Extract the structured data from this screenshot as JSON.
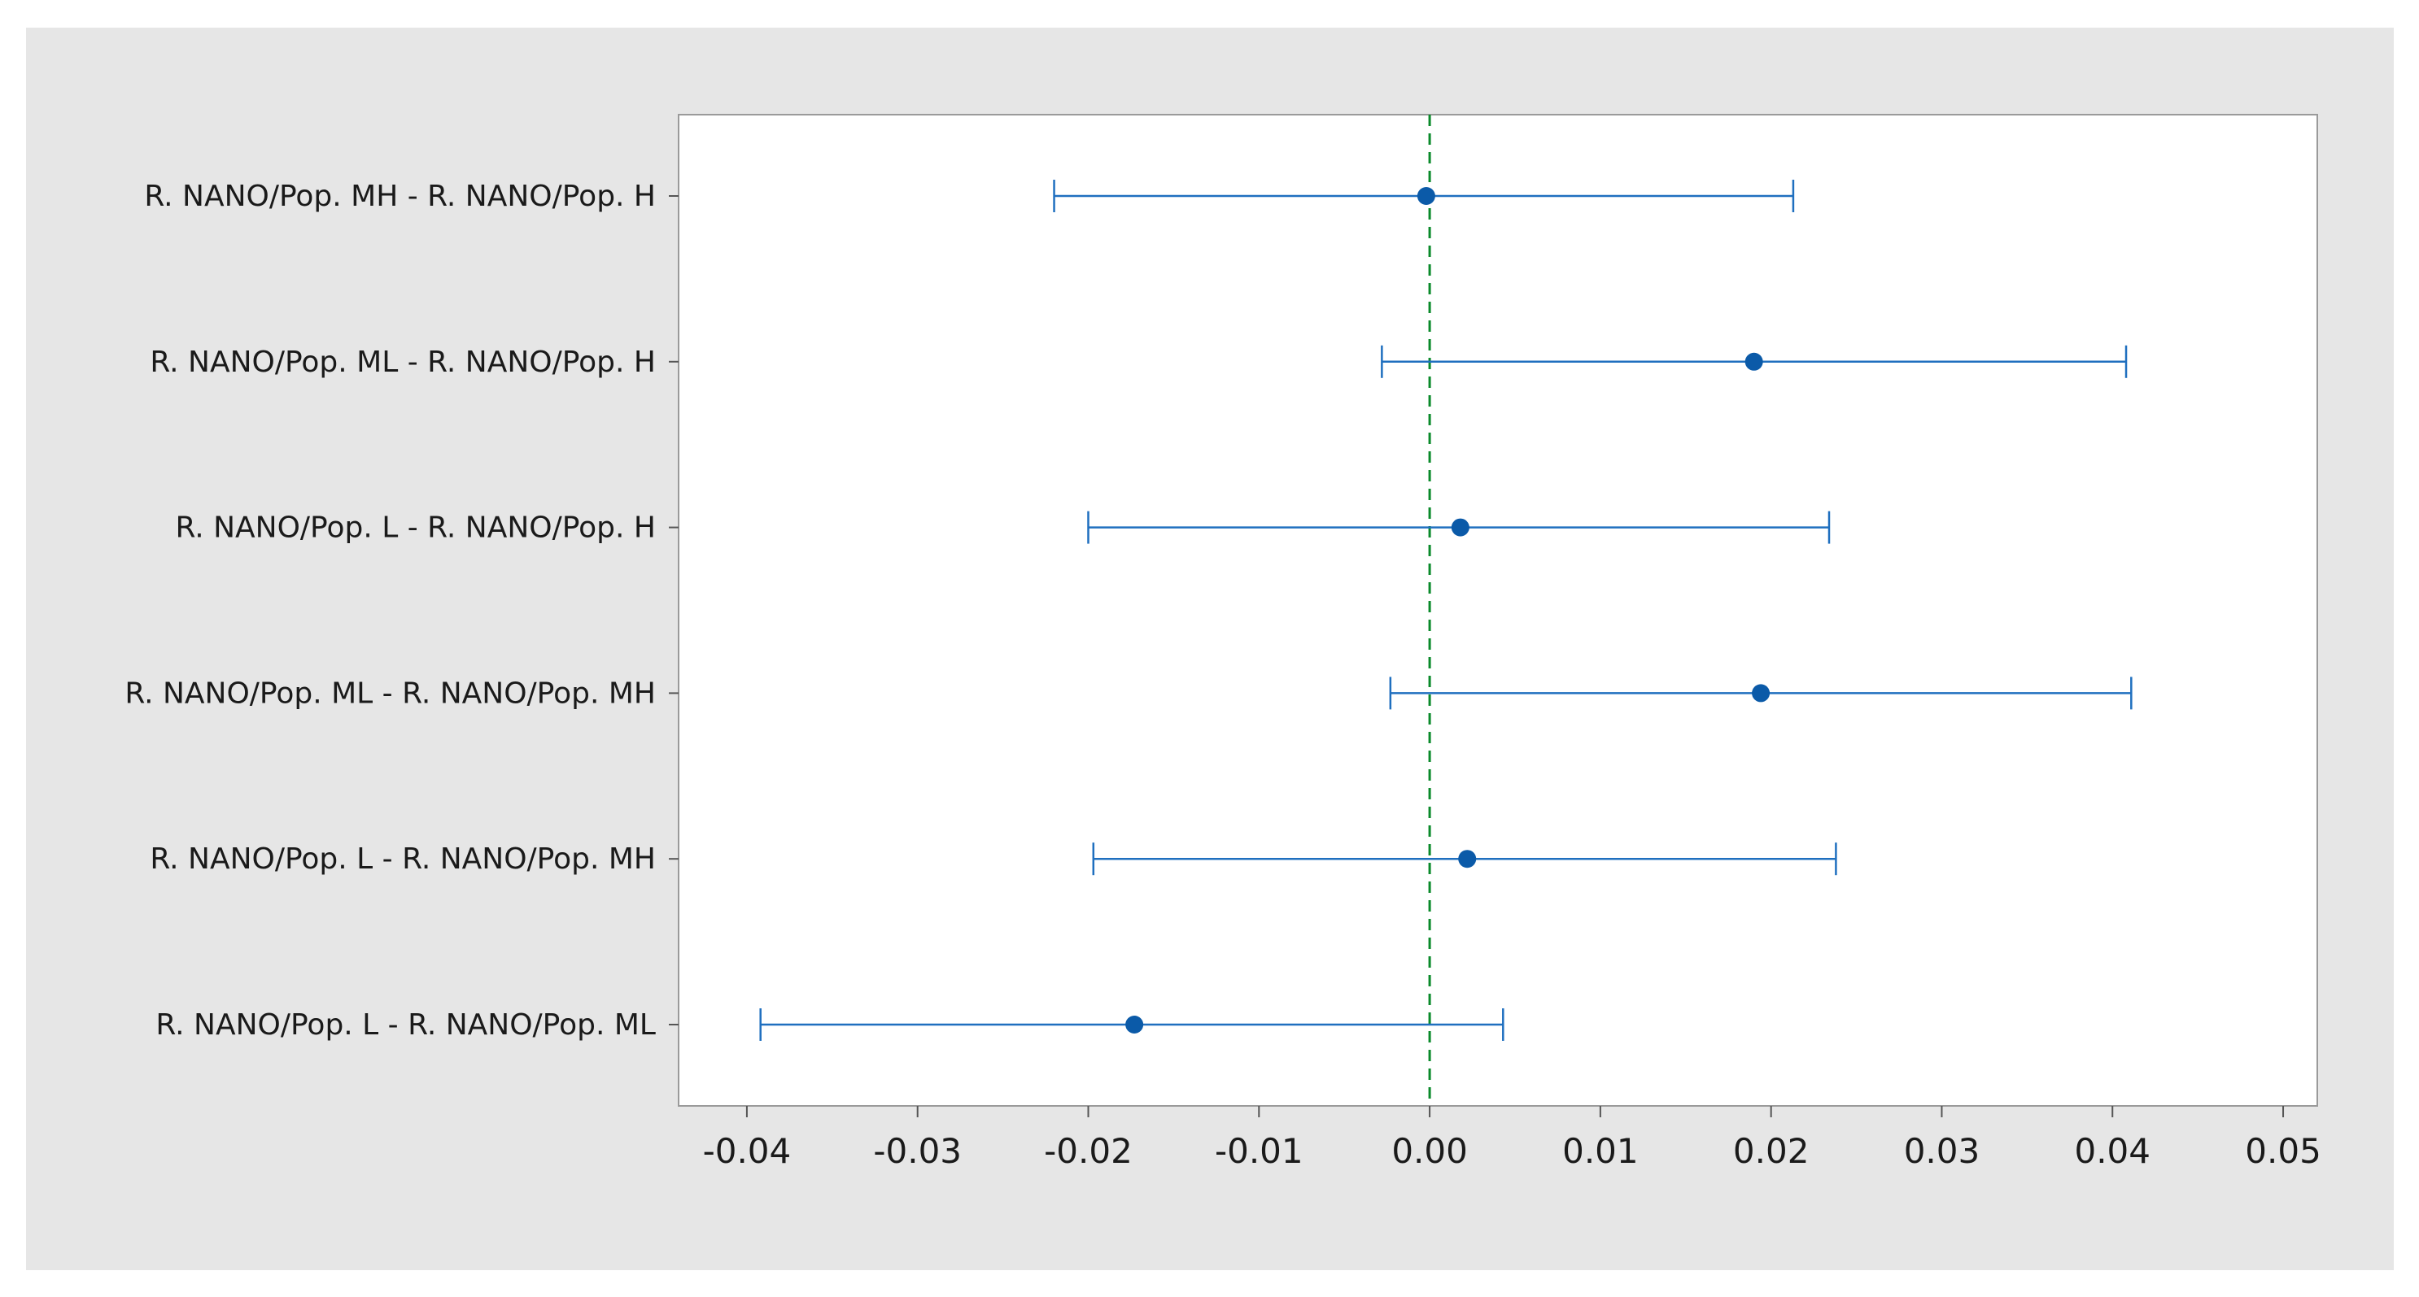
{
  "chart_data": {
    "type": "interval-plot",
    "title": "",
    "xlabel": "",
    "ylabel": "",
    "xlim": [
      -0.044,
      0.052
    ],
    "xticks": [
      -0.04,
      -0.03,
      -0.02,
      -0.01,
      0.0,
      0.01,
      0.02,
      0.03,
      0.04,
      0.05
    ],
    "xtick_labels": [
      "-0.04",
      "-0.03",
      "-0.02",
      "-0.01",
      "0.00",
      "0.01",
      "0.02",
      "0.03",
      "0.04",
      "0.05"
    ],
    "reference_line": 0.0,
    "grid": false,
    "series": [
      {
        "categories": [
          "R. NANO/Pop. MH - R. NANO/Pop. H",
          "R. NANO/Pop. ML - R. NANO/Pop. H",
          "R. NANO/Pop. L - R. NANO/Pop. H",
          "R. NANO/Pop. ML - R. NANO/Pop. MH",
          "R. NANO/Pop. L - R. NANO/Pop. MH",
          "R. NANO/Pop. L - R. NANO/Pop. ML"
        ],
        "estimate": [
          -0.0002,
          0.019,
          0.0018,
          0.0194,
          0.0022,
          -0.0173
        ],
        "lower": [
          -0.022,
          -0.0028,
          -0.02,
          -0.0023,
          -0.0197,
          -0.0392
        ],
        "upper": [
          0.0213,
          0.0408,
          0.0234,
          0.0411,
          0.0238,
          0.0043
        ]
      }
    ],
    "colors": {
      "interval": "#1f6fbf",
      "point": "#0b5aa8",
      "reference": "#0a8a2a",
      "plot_bg": "#ffffff",
      "frame_bg": "#e6e6e6"
    }
  }
}
